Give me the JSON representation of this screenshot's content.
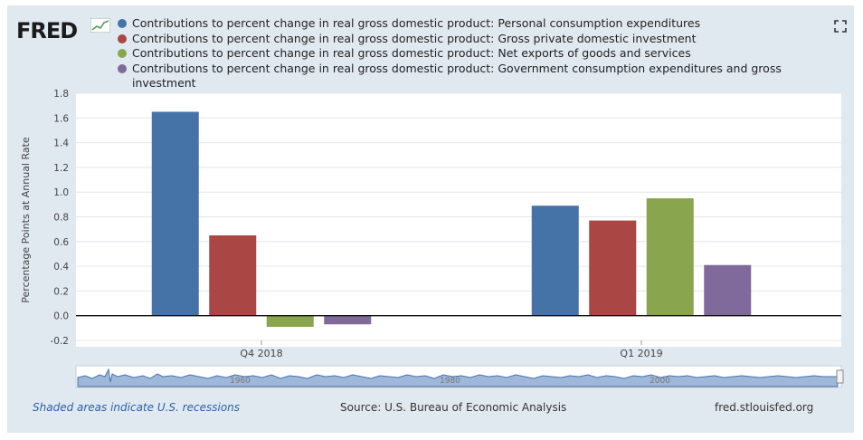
{
  "header": {
    "logo_text": "FRED",
    "fullscreen_icon": "fullscreen-icon"
  },
  "legend": [
    {
      "label": "Contributions to percent change in real gross domestic product: Personal consumption expenditures",
      "color": "#4572a7"
    },
    {
      "label": "Contributions to percent change in real gross domestic product: Gross private domestic investment",
      "color": "#aa4643"
    },
    {
      "label": "Contributions to percent change in real gross domestic product: Net exports of goods and services",
      "color": "#89a54e"
    },
    {
      "label": "Contributions to percent change in real gross domestic product: Government consumption expenditures and gross investment",
      "color": "#80699b"
    }
  ],
  "chart_data": {
    "type": "bar",
    "title": "",
    "xlabel": "",
    "ylabel": "Percentage Points at Annual Rate",
    "categories": [
      "Q4 2018",
      "Q1 2019"
    ],
    "series": [
      {
        "name": "Personal consumption expenditures",
        "values": [
          1.65,
          0.89
        ]
      },
      {
        "name": "Gross private domestic investment",
        "values": [
          0.65,
          0.77
        ]
      },
      {
        "name": "Net exports of goods and services",
        "values": [
          -0.09,
          0.95
        ]
      },
      {
        "name": "Government consumption expenditures and gross investment",
        "values": [
          -0.07,
          0.41
        ]
      }
    ],
    "ylim": [
      -0.2,
      1.8
    ],
    "yticks": [
      "-0.2",
      "0.0",
      "0.2",
      "0.4",
      "0.6",
      "0.8",
      "1.0",
      "1.2",
      "1.4",
      "1.6",
      "1.8"
    ],
    "grid": true,
    "legend_position": "top"
  },
  "navigator": {
    "labels": [
      "1960",
      "1980",
      "2000"
    ]
  },
  "footer": {
    "note": "Shaded areas indicate U.S. recessions",
    "source": "Source: U.S. Bureau of Economic Analysis",
    "site": "fred.stlouisfed.org"
  }
}
